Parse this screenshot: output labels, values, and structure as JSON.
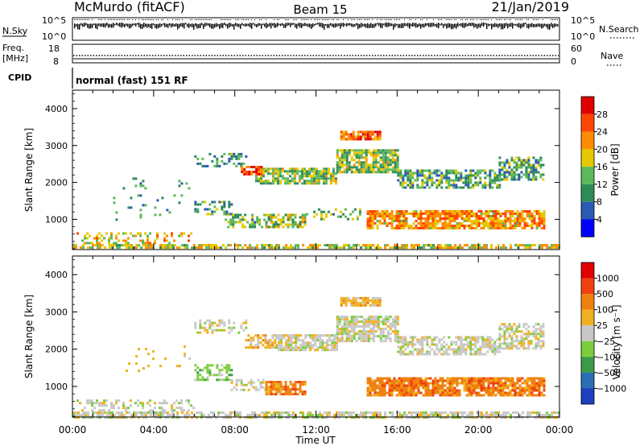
{
  "header": {
    "station": "McMurdo (fitACF)",
    "beam": "Beam 15",
    "date": "21/Jan/2019"
  },
  "nsky_panel": {
    "left_label": "N.Sky",
    "right_label": "N.Search",
    "left_ticks": [
      "10^5",
      "10^0"
    ],
    "right_ticks": [
      "10^5",
      "10^0"
    ]
  },
  "freq_panel": {
    "left_label_1": "Freq.",
    "left_label_2": "[MHz]",
    "right_label": "Nave",
    "left_ticks": [
      "18",
      "8"
    ],
    "right_ticks": [
      "60",
      "0"
    ]
  },
  "cpid_panel": {
    "label": "CPID",
    "program": "normal (fast) 151 RF"
  },
  "x_axis": {
    "label": "Time UT",
    "ticks": [
      "00:00",
      "04:00",
      "08:00",
      "12:00",
      "16:00",
      "20:00",
      "00:00"
    ]
  },
  "chart_data": [
    {
      "type": "heatmap",
      "title": "",
      "xlabel": "Time UT",
      "ylabel": "Slant Range [km]",
      "x_range_hours": [
        0,
        24
      ],
      "y_range_km": [
        180,
        4500
      ],
      "y_ticks": [
        "1000",
        "2000",
        "3000",
        "4000"
      ],
      "colorbar": {
        "label": "Power [dB]",
        "ticks": [
          "4",
          "8",
          "12",
          "16",
          "20",
          "24",
          "28"
        ],
        "range": [
          0,
          32
        ],
        "colors": [
          "#0000ff",
          "#2a5ab4",
          "#2e8b57",
          "#5cb85c",
          "#e6c800",
          "#ff8c00",
          "#ff4500",
          "#e00000"
        ]
      },
      "features": [
        {
          "t0": 0.0,
          "t1": 24.0,
          "r0": 200,
          "r1": 330,
          "level": 0.55,
          "dens": 0.7
        },
        {
          "t0": 0.2,
          "t1": 6.0,
          "r0": 330,
          "r1": 650,
          "level": 0.6,
          "dens": 0.3
        },
        {
          "t0": 2.0,
          "t1": 5.8,
          "r0": 1000,
          "r1": 2200,
          "level": 0.3,
          "dens": 0.05
        },
        {
          "t0": 6.0,
          "t1": 7.8,
          "r0": 1150,
          "r1": 1500,
          "level": 0.3,
          "dens": 0.35
        },
        {
          "t0": 6.0,
          "t1": 8.5,
          "r0": 2450,
          "r1": 2800,
          "level": 0.3,
          "dens": 0.35
        },
        {
          "t0": 7.5,
          "t1": 9.5,
          "r0": 800,
          "r1": 1150,
          "level": 0.4,
          "dens": 0.45
        },
        {
          "t0": 9.5,
          "t1": 11.5,
          "r0": 800,
          "r1": 1150,
          "level": 0.45,
          "dens": 0.7
        },
        {
          "t0": 11.5,
          "t1": 14.5,
          "r0": 1000,
          "r1": 1300,
          "level": 0.4,
          "dens": 0.3
        },
        {
          "t0": 14.5,
          "t1": 23.2,
          "r0": 750,
          "r1": 1250,
          "level": 0.7,
          "dens": 0.8
        },
        {
          "t0": 9.0,
          "t1": 13.0,
          "r0": 2000,
          "r1": 2400,
          "level": 0.45,
          "dens": 0.8
        },
        {
          "t0": 13.0,
          "t1": 16.0,
          "r0": 2250,
          "r1": 2900,
          "level": 0.45,
          "dens": 0.8
        },
        {
          "t0": 16.0,
          "t1": 21.0,
          "r0": 1850,
          "r1": 2350,
          "level": 0.35,
          "dens": 0.65
        },
        {
          "t0": 21.0,
          "t1": 23.2,
          "r0": 2050,
          "r1": 2700,
          "level": 0.35,
          "dens": 0.65
        },
        {
          "t0": 13.2,
          "t1": 15.2,
          "r0": 3150,
          "r1": 3400,
          "level": 0.8,
          "dens": 0.85
        },
        {
          "t0": 8.3,
          "t1": 9.3,
          "r0": 2200,
          "r1": 2450,
          "level": 0.85,
          "dens": 0.7
        }
      ]
    },
    {
      "type": "heatmap",
      "title": "",
      "xlabel": "Time UT",
      "ylabel": "Slant Range [km]",
      "x_range_hours": [
        0,
        24
      ],
      "y_range_km": [
        180,
        4500
      ],
      "y_ticks": [
        "1000",
        "2000",
        "3000",
        "4000"
      ],
      "colorbar": {
        "label": "Velocity [m s⁻¹]",
        "ticks": [
          "1000",
          "500",
          "100",
          "25",
          "−25",
          "−100",
          "−500",
          "−1000"
        ],
        "colors": [
          "#1f3fbf",
          "#2a6eb4",
          "#3a9a48",
          "#7ccd3c",
          "#c8c8c8",
          "#f0b020",
          "#f08010",
          "#f04010",
          "#e00000"
        ]
      },
      "features": [
        {
          "t0": 0.0,
          "t1": 24.0,
          "r0": 200,
          "r1": 330,
          "level": 4,
          "dens": 0.7
        },
        {
          "t0": 0.2,
          "t1": 6.0,
          "r0": 330,
          "r1": 650,
          "level": 4,
          "dens": 0.3
        },
        {
          "t0": 6.0,
          "t1": 7.8,
          "r0": 1150,
          "r1": 1600,
          "level": 3,
          "dens": 0.5
        },
        {
          "t0": 7.8,
          "t1": 9.5,
          "r0": 900,
          "r1": 1200,
          "level": 4,
          "dens": 0.45
        },
        {
          "t0": 9.5,
          "t1": 11.5,
          "r0": 800,
          "r1": 1150,
          "level": 6,
          "dens": 0.8
        },
        {
          "t0": 14.5,
          "t1": 23.2,
          "r0": 750,
          "r1": 1250,
          "level": 6,
          "dens": 0.85
        },
        {
          "t0": 6.0,
          "t1": 8.5,
          "r0": 2450,
          "r1": 2800,
          "level": 4,
          "dens": 0.35
        },
        {
          "t0": 8.5,
          "t1": 10.0,
          "r0": 2050,
          "r1": 2400,
          "level": 5,
          "dens": 0.6
        },
        {
          "t0": 10.0,
          "t1": 13.0,
          "r0": 2000,
          "r1": 2400,
          "level": 4,
          "dens": 0.8
        },
        {
          "t0": 13.0,
          "t1": 16.0,
          "r0": 2250,
          "r1": 2900,
          "level": 4,
          "dens": 0.8
        },
        {
          "t0": 16.0,
          "t1": 21.0,
          "r0": 1850,
          "r1": 2350,
          "level": 4,
          "dens": 0.65
        },
        {
          "t0": 21.0,
          "t1": 23.2,
          "r0": 2050,
          "r1": 2700,
          "level": 4,
          "dens": 0.6
        },
        {
          "t0": 13.2,
          "t1": 15.2,
          "r0": 3150,
          "r1": 3400,
          "level": 5,
          "dens": 0.85
        },
        {
          "t0": 2.5,
          "t1": 5.8,
          "r0": 1200,
          "r1": 2100,
          "level": 5,
          "dens": 0.04
        }
      ]
    }
  ]
}
